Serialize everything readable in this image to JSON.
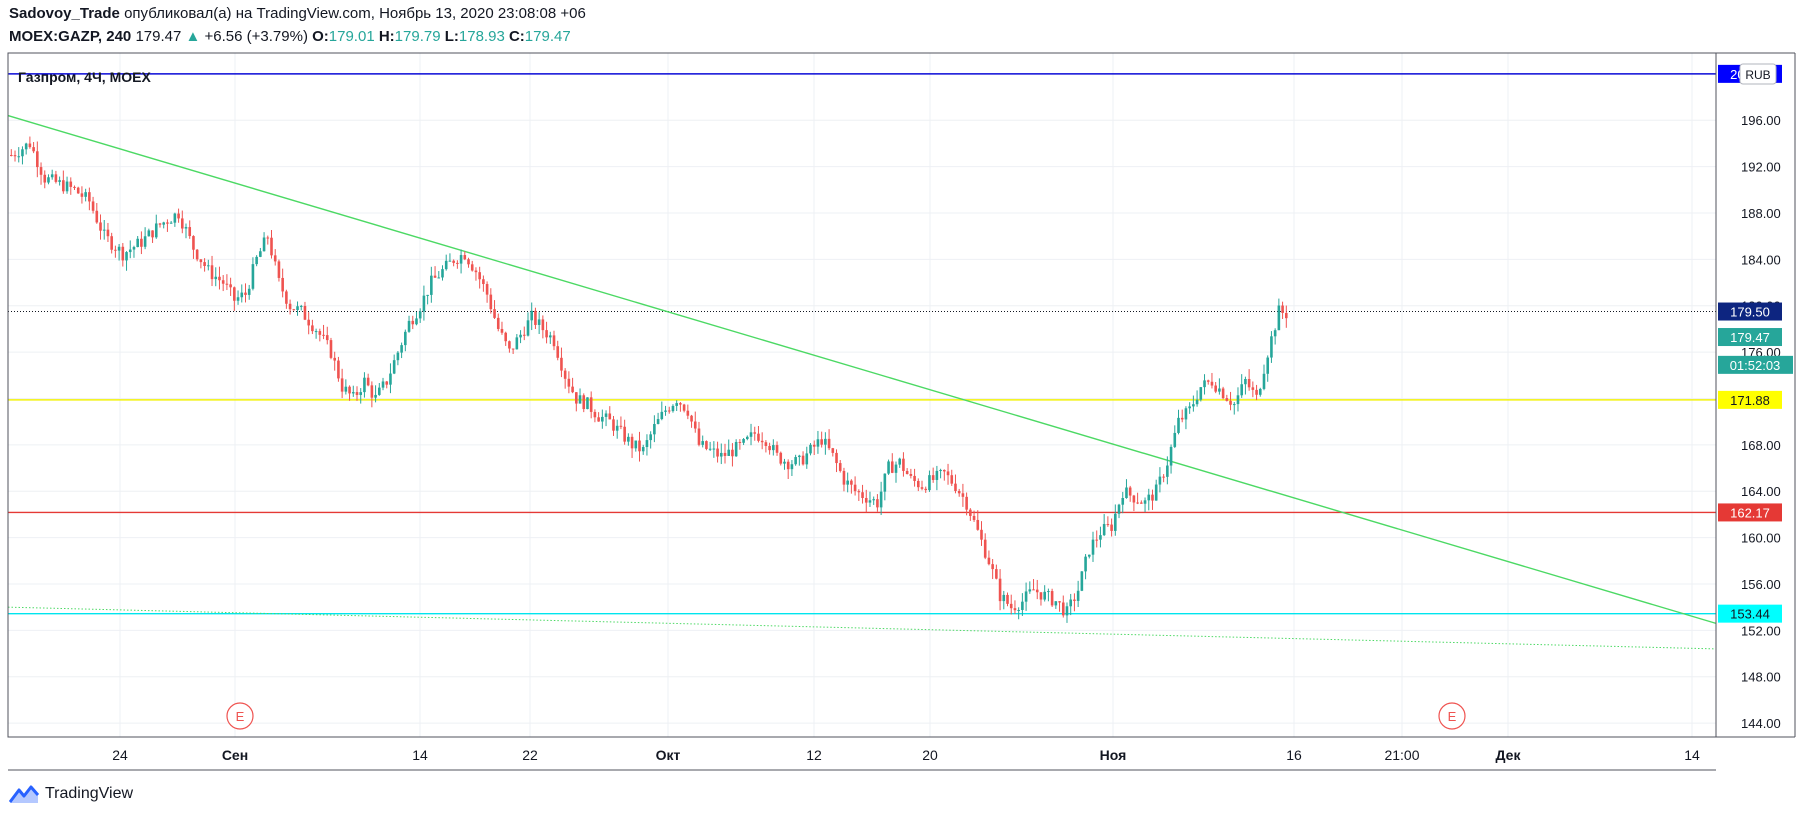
{
  "header": {
    "author": "Sadovoy_Trade",
    "published_text": "опубликовал(а) на TradingView.com, Ноябрь 13, 2020 23:08:08 +06",
    "symbol": "MOEX:GAZP, 240",
    "last": "179.47",
    "change": "+6.56 (+3.79%)",
    "open_label": "O:",
    "open": "179.01",
    "high_label": "H:",
    "high": "179.79",
    "low_label": "L:",
    "low": "178.93",
    "close_label": "C:",
    "close": "179.47"
  },
  "footer": {
    "brand": "TradingView"
  },
  "colors": {
    "up": "#26a69a",
    "down": "#ef5350",
    "grid": "#eef0f4",
    "trend": "#4cd964"
  },
  "chart_data": {
    "type": "candlestick",
    "title": "Газпром, 4Ч, MOEX",
    "currency": "RUB",
    "ylim": [
      142.8,
      201.8
    ],
    "y_ticks": [
      "144.00",
      "148.00",
      "152.00",
      "156.00",
      "160.00",
      "164.00",
      "168.00",
      "172.00",
      "176.00",
      "180.00",
      "184.00",
      "188.00",
      "192.00",
      "196.00",
      "200.00"
    ],
    "x_ticks": [
      "24",
      "Сен",
      "14",
      "22",
      "Окт",
      "12",
      "20",
      "Ноя",
      "16",
      "21:00",
      "Дек",
      "14"
    ],
    "earnings_markers": [
      "E",
      "E"
    ],
    "price_levels": [
      {
        "name": "level-200",
        "value": 200.0,
        "label": "200.00",
        "color": "#0a0ad8",
        "label_color": "#0000ff"
      },
      {
        "name": "level-current",
        "value": 179.5,
        "label": "179.50",
        "color": "#131722",
        "label_color": "#0d2580",
        "dotted": true
      },
      {
        "name": "level-171",
        "value": 171.88,
        "label": "171.88",
        "color": "#f2f20a",
        "label_color": "#ffff00"
      },
      {
        "name": "level-162",
        "value": 162.17,
        "label": "162.17",
        "color": "#e53935",
        "label_color": "#e53935"
      },
      {
        "name": "level-153",
        "value": 153.44,
        "label": "153.44",
        "color": "#00e5ee",
        "label_color": "#00ffff"
      }
    ],
    "last_price_label": "179.47",
    "countdown_label": "01:52:03",
    "trendlines": [
      {
        "name": "trendline-descending",
        "from": [
          0,
          196.4
        ],
        "to": [
          1,
          152.6
        ],
        "style": "solid"
      },
      {
        "name": "trendline-support",
        "from": [
          0,
          154.0
        ],
        "to": [
          1,
          150.4
        ],
        "style": "dotted"
      }
    ],
    "path": [
      [
        0,
        193
      ],
      [
        5,
        194
      ],
      [
        9,
        191
      ],
      [
        13,
        190.5
      ],
      [
        17,
        190
      ],
      [
        21,
        189
      ],
      [
        25,
        186
      ],
      [
        30,
        184.5
      ],
      [
        35,
        185.5
      ],
      [
        40,
        187
      ],
      [
        45,
        188
      ],
      [
        49,
        185
      ],
      [
        53,
        183
      ],
      [
        57,
        182
      ],
      [
        60,
        180.5
      ],
      [
        63,
        181
      ],
      [
        66,
        184
      ],
      [
        69,
        186
      ],
      [
        72,
        182
      ],
      [
        75,
        180
      ],
      [
        78,
        179.5
      ],
      [
        82,
        178
      ],
      [
        86,
        176
      ],
      [
        89,
        173
      ],
      [
        92,
        172
      ],
      [
        95,
        173.5
      ],
      [
        98,
        172
      ],
      [
        101,
        173.5
      ],
      [
        104,
        176
      ],
      [
        107,
        178.5
      ],
      [
        110,
        180
      ],
      [
        113,
        182
      ],
      [
        116,
        183
      ],
      [
        119,
        184
      ],
      [
        122,
        184.5
      ],
      [
        125,
        183
      ],
      [
        128,
        181
      ],
      [
        131,
        178
      ],
      [
        134,
        176
      ],
      [
        137,
        177.5
      ],
      [
        140,
        179
      ],
      [
        143,
        178
      ],
      [
        146,
        177
      ],
      [
        149,
        174
      ],
      [
        152,
        172
      ],
      [
        155,
        171.5
      ],
      [
        158,
        170.5
      ],
      [
        161,
        170
      ],
      [
        164,
        169
      ],
      [
        167,
        168
      ],
      [
        170,
        167.5
      ],
      [
        173,
        169.5
      ],
      [
        176,
        171
      ],
      [
        179,
        172
      ],
      [
        182,
        171
      ],
      [
        185,
        168
      ],
      [
        188,
        167.5
      ],
      [
        191,
        167
      ],
      [
        194,
        167.5
      ],
      [
        197,
        168
      ],
      [
        200,
        169
      ],
      [
        203,
        168.5
      ],
      [
        206,
        167
      ],
      [
        209,
        166.5
      ],
      [
        212,
        166.5
      ],
      [
        215,
        167.5
      ],
      [
        218,
        168.5
      ],
      [
        221,
        167
      ],
      [
        224,
        165
      ],
      [
        227,
        164
      ],
      [
        230,
        163.5
      ],
      [
        233,
        163
      ],
      [
        236,
        166
      ],
      [
        239,
        166.5
      ],
      [
        242,
        165
      ],
      [
        245,
        164.5
      ],
      [
        248,
        165
      ],
      [
        251,
        165.5
      ],
      [
        254,
        164.5
      ],
      [
        257,
        163
      ],
      [
        260,
        160.5
      ],
      [
        263,
        158
      ],
      [
        266,
        155
      ],
      [
        269,
        154
      ],
      [
        272,
        154.5
      ],
      [
        275,
        155.5
      ],
      [
        278,
        155
      ],
      [
        281,
        154.5
      ],
      [
        284,
        153.5
      ],
      [
        287,
        155.5
      ],
      [
        290,
        159
      ],
      [
        293,
        160.5
      ],
      [
        296,
        161
      ],
      [
        299,
        164
      ],
      [
        302,
        163.5
      ],
      [
        305,
        163
      ],
      [
        308,
        164
      ],
      [
        311,
        166.5
      ],
      [
        314,
        170
      ],
      [
        317,
        171
      ],
      [
        320,
        173
      ],
      [
        323,
        173.5
      ],
      [
        326,
        172.5
      ],
      [
        329,
        171.5
      ],
      [
        332,
        173.5
      ],
      [
        335,
        172
      ],
      [
        338,
        176
      ],
      [
        341,
        179.5
      ],
      [
        343,
        179.3
      ]
    ]
  }
}
